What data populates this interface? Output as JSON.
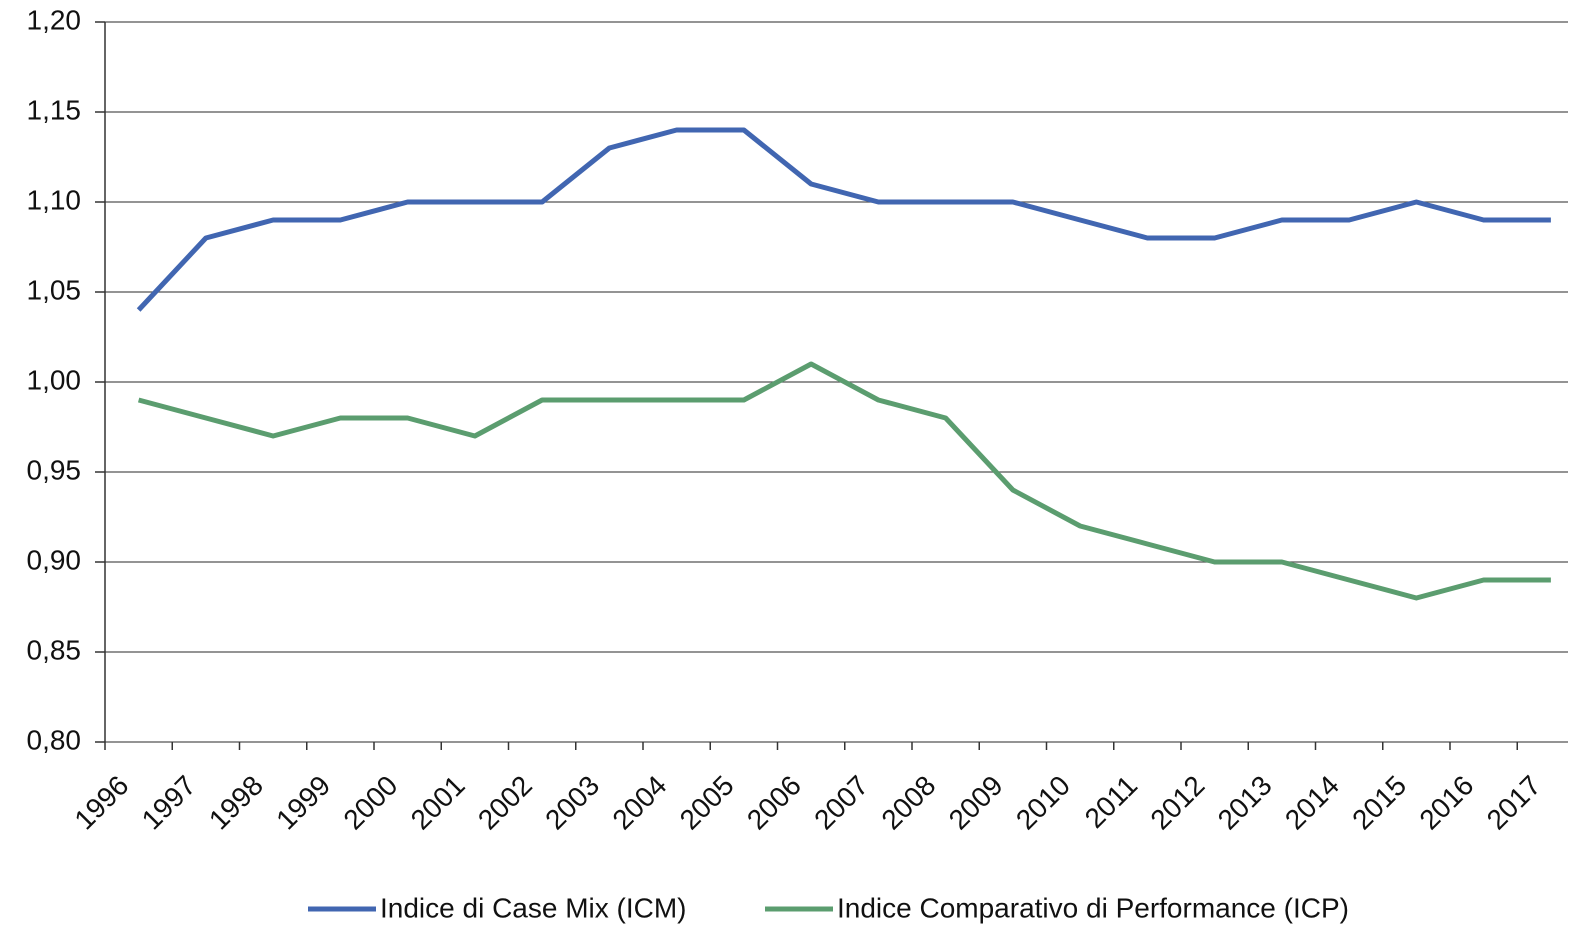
{
  "chart_data": {
    "type": "line",
    "categories": [
      "1996",
      "1997",
      "1998",
      "1999",
      "2000",
      "2001",
      "2002",
      "2003",
      "2004",
      "2005",
      "2006",
      "2007",
      "2008",
      "2009",
      "2010",
      "2011",
      "2012",
      "2013",
      "2014",
      "2015",
      "2016",
      "2017"
    ],
    "series": [
      {
        "name": "Indice di Case Mix (ICM)",
        "color": "#4166b1",
        "values": [
          1.04,
          1.08,
          1.09,
          1.09,
          1.1,
          1.1,
          1.1,
          1.13,
          1.14,
          1.14,
          1.11,
          1.1,
          1.1,
          1.1,
          1.09,
          1.08,
          1.08,
          1.09,
          1.09,
          1.1,
          1.09,
          1.09
        ]
      },
      {
        "name": "Indice Comparativo di Performance (ICP)",
        "color": "#5b9d6f",
        "values": [
          0.99,
          0.98,
          0.97,
          0.98,
          0.98,
          0.97,
          0.99,
          0.99,
          0.99,
          0.99,
          1.01,
          0.99,
          0.98,
          0.94,
          0.92,
          0.91,
          0.9,
          0.9,
          0.89,
          0.88,
          0.89,
          0.89
        ]
      }
    ],
    "ylim": [
      0.8,
      1.2
    ],
    "yticks": [
      {
        "value": 0.8,
        "label": "0,80"
      },
      {
        "value": 0.85,
        "label": "0,85"
      },
      {
        "value": 0.9,
        "label": "0,90"
      },
      {
        "value": 0.95,
        "label": "0,95"
      },
      {
        "value": 1.0,
        "label": "1,00"
      },
      {
        "value": 1.05,
        "label": "1,05"
      },
      {
        "value": 1.1,
        "label": "1,10"
      },
      {
        "value": 1.15,
        "label": "1,15"
      },
      {
        "value": 1.2,
        "label": "1,20"
      }
    ],
    "grid": true,
    "legend": "bottom"
  }
}
